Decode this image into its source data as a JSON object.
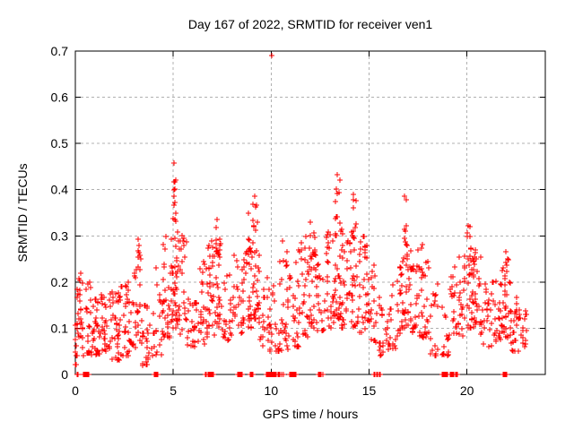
{
  "chart_data": {
    "type": "scatter",
    "title": "Day 167 of 2022, SRMTID for receiver ven1",
    "xlabel": "GPS time / hours",
    "ylabel": "SRMTID / TECUs",
    "xlim": [
      0,
      24
    ],
    "ylim": [
      0,
      0.7
    ],
    "xticks": {
      "values": [
        0,
        5,
        10,
        15,
        20
      ],
      "labels": [
        "0",
        "5",
        "10",
        "15",
        "20"
      ]
    },
    "yticks": {
      "values": [
        0,
        0.1,
        0.2,
        0.3,
        0.4,
        0.5,
        0.6,
        0.7
      ],
      "labels": [
        "0",
        "0.1",
        "0.2",
        "0.3",
        "0.4",
        "0.5",
        "0.6",
        "0.7"
      ]
    },
    "grid": {
      "style": "dashed",
      "color": "#b0b0b0",
      "on": true
    },
    "border_color": "#000000",
    "background": "#ffffff",
    "legend": "none",
    "series": [
      {
        "name": "SRMTID",
        "marker": "plus",
        "color": "#ff0000",
        "marker_size_px": 7,
        "outlier_points": [
          [
            10.02,
            0.69
          ],
          [
            5.05,
            0.458
          ],
          [
            13.38,
            0.432
          ],
          [
            3.2,
            0.292
          ],
          [
            9.18,
            0.385
          ],
          [
            14.22,
            0.39
          ],
          [
            16.82,
            0.385
          ],
          [
            20.08,
            0.322
          ],
          [
            7.22,
            0.335
          ],
          [
            8.85,
            0.35
          ],
          [
            12.02,
            0.33
          ],
          [
            22.0,
            0.265
          ]
        ],
        "density_bins": [
          [
            0.0,
            0.1,
            0.02,
            0.12,
            12
          ],
          [
            0.02,
            0.3,
            0.08,
            0.22,
            16
          ],
          [
            0.3,
            0.8,
            0.04,
            0.2,
            26
          ],
          [
            0.8,
            1.3,
            0.04,
            0.17,
            30
          ],
          [
            1.3,
            1.8,
            0.05,
            0.18,
            30
          ],
          [
            1.8,
            2.3,
            0.03,
            0.18,
            28
          ],
          [
            2.3,
            2.8,
            0.04,
            0.2,
            28
          ],
          [
            2.8,
            3.4,
            0.05,
            0.26,
            30
          ],
          [
            3.4,
            3.9,
            0.02,
            0.16,
            24
          ],
          [
            3.9,
            4.5,
            0.04,
            0.24,
            24
          ],
          [
            4.5,
            4.9,
            0.08,
            0.3,
            26
          ],
          [
            4.9,
            5.2,
            0.1,
            0.33,
            30
          ],
          [
            5.2,
            5.7,
            0.08,
            0.32,
            26
          ],
          [
            5.7,
            6.2,
            0.06,
            0.22,
            22
          ],
          [
            6.2,
            6.7,
            0.06,
            0.25,
            24
          ],
          [
            6.7,
            7.1,
            0.08,
            0.29,
            26
          ],
          [
            7.1,
            7.5,
            0.1,
            0.3,
            26
          ],
          [
            7.5,
            8.1,
            0.07,
            0.26,
            26
          ],
          [
            8.1,
            8.6,
            0.09,
            0.28,
            24
          ],
          [
            8.6,
            9.0,
            0.1,
            0.3,
            24
          ],
          [
            9.0,
            9.4,
            0.12,
            0.3,
            26
          ],
          [
            9.4,
            9.9,
            0.06,
            0.22,
            20
          ],
          [
            9.9,
            10.4,
            0.05,
            0.2,
            22
          ],
          [
            10.4,
            10.9,
            0.05,
            0.25,
            24
          ],
          [
            10.9,
            11.4,
            0.06,
            0.25,
            24
          ],
          [
            11.4,
            11.9,
            0.08,
            0.28,
            24
          ],
          [
            11.9,
            12.3,
            0.1,
            0.3,
            24
          ],
          [
            12.3,
            12.8,
            0.08,
            0.25,
            20
          ],
          [
            12.8,
            13.2,
            0.1,
            0.32,
            26
          ],
          [
            13.2,
            13.6,
            0.12,
            0.3,
            28
          ],
          [
            13.6,
            14.0,
            0.1,
            0.33,
            26
          ],
          [
            14.0,
            14.5,
            0.1,
            0.3,
            28
          ],
          [
            14.5,
            15.0,
            0.09,
            0.3,
            28
          ],
          [
            15.0,
            15.4,
            0.07,
            0.24,
            18
          ],
          [
            15.4,
            15.9,
            0.04,
            0.17,
            16
          ],
          [
            15.9,
            16.4,
            0.05,
            0.2,
            20
          ],
          [
            16.4,
            16.7,
            0.08,
            0.24,
            18
          ],
          [
            16.7,
            17.1,
            0.1,
            0.28,
            26
          ],
          [
            17.1,
            17.6,
            0.09,
            0.28,
            24
          ],
          [
            17.6,
            18.1,
            0.08,
            0.29,
            24
          ],
          [
            18.1,
            18.6,
            0.04,
            0.2,
            18
          ],
          [
            18.6,
            19.1,
            0.04,
            0.15,
            14
          ],
          [
            19.1,
            19.5,
            0.08,
            0.26,
            18
          ],
          [
            19.5,
            20.0,
            0.08,
            0.26,
            22
          ],
          [
            20.0,
            20.35,
            0.1,
            0.26,
            26
          ],
          [
            20.35,
            20.8,
            0.08,
            0.29,
            24
          ],
          [
            20.8,
            21.3,
            0.06,
            0.2,
            22
          ],
          [
            21.3,
            21.8,
            0.07,
            0.22,
            24
          ],
          [
            21.8,
            22.25,
            0.08,
            0.24,
            28
          ],
          [
            22.25,
            22.7,
            0.05,
            0.17,
            18
          ],
          [
            22.7,
            23.05,
            0.06,
            0.15,
            14
          ],
          [
            4.95,
            5.15,
            0.33,
            0.46,
            12
          ],
          [
            13.25,
            13.55,
            0.3,
            0.435,
            13
          ],
          [
            9.05,
            9.3,
            0.3,
            0.385,
            8
          ],
          [
            14.1,
            14.35,
            0.3,
            0.39,
            8
          ],
          [
            16.75,
            16.95,
            0.28,
            0.385,
            8
          ],
          [
            20.0,
            20.3,
            0.25,
            0.322,
            8
          ],
          [
            7.1,
            7.4,
            0.26,
            0.335,
            6
          ],
          [
            11.9,
            12.25,
            0.26,
            0.33,
            6
          ],
          [
            8.7,
            9.0,
            0.26,
            0.35,
            6
          ],
          [
            3.05,
            3.35,
            0.22,
            0.292,
            5
          ],
          [
            21.85,
            22.15,
            0.2,
            0.265,
            6
          ],
          [
            6.8,
            7.05,
            0.22,
            0.31,
            5
          ],
          [
            17.7,
            18.15,
            0.22,
            0.295,
            5
          ],
          [
            10.55,
            10.85,
            0.22,
            0.29,
            4
          ],
          [
            11.5,
            11.85,
            0.24,
            0.31,
            4
          ],
          [
            14.6,
            14.95,
            0.24,
            0.3,
            5
          ],
          [
            17.15,
            17.5,
            0.22,
            0.28,
            4
          ],
          [
            20.35,
            20.65,
            0.22,
            0.3,
            5
          ],
          [
            0.1,
            0.45,
            0.17,
            0.215,
            5
          ],
          [
            1.75,
            2.1,
            0.15,
            0.19,
            4
          ],
          [
            2.5,
            2.8,
            0.15,
            0.2,
            4
          ],
          [
            5.3,
            5.6,
            0.24,
            0.32,
            5
          ],
          [
            22.4,
            22.7,
            0.1,
            0.17,
            6
          ]
        ],
        "zero_runs": [
          [
            0.08,
            0.16,
            3
          ],
          [
            0.42,
            0.68,
            9
          ],
          [
            4.02,
            4.2,
            7
          ],
          [
            6.62,
            7.05,
            10
          ],
          [
            8.28,
            8.5,
            7
          ],
          [
            8.95,
            9.05,
            4
          ],
          [
            9.75,
            10.6,
            20
          ],
          [
            10.95,
            11.25,
            9
          ],
          [
            12.4,
            12.65,
            8
          ],
          [
            15.27,
            15.55,
            7
          ],
          [
            18.72,
            19.0,
            7
          ],
          [
            19.15,
            19.5,
            8
          ],
          [
            21.85,
            22.02,
            5
          ]
        ]
      }
    ]
  }
}
